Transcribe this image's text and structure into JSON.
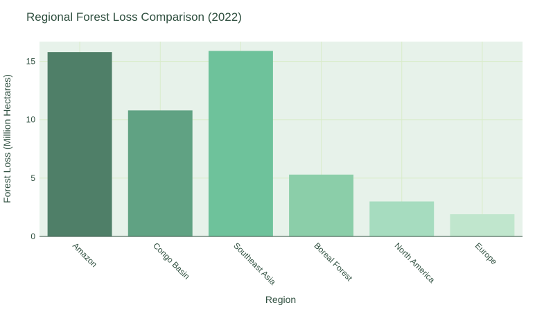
{
  "chart_data": {
    "type": "bar",
    "title": "Regional Forest Loss Comparison (2022)",
    "xlabel": "Region",
    "ylabel": "Forest Loss (Million Hectares)",
    "categories": [
      "Amazon",
      "Congo Basin",
      "Southeast Asia",
      "Boreal Forest",
      "North America",
      "Europe"
    ],
    "values": [
      15.8,
      10.8,
      15.9,
      5.3,
      3.0,
      1.9
    ],
    "ylim": [
      0,
      16.7
    ],
    "yticks": [
      0,
      5,
      10,
      15
    ],
    "grid": true,
    "colors": {
      "plot_background": "#e7f2ea",
      "grid": "#d9ecc9",
      "axis": "#2f4f3f",
      "bars": [
        "#4f7f68",
        "#60a283",
        "#6ec29b",
        "#8bcea9",
        "#a6dcbf",
        "#c0e6cd"
      ]
    }
  }
}
